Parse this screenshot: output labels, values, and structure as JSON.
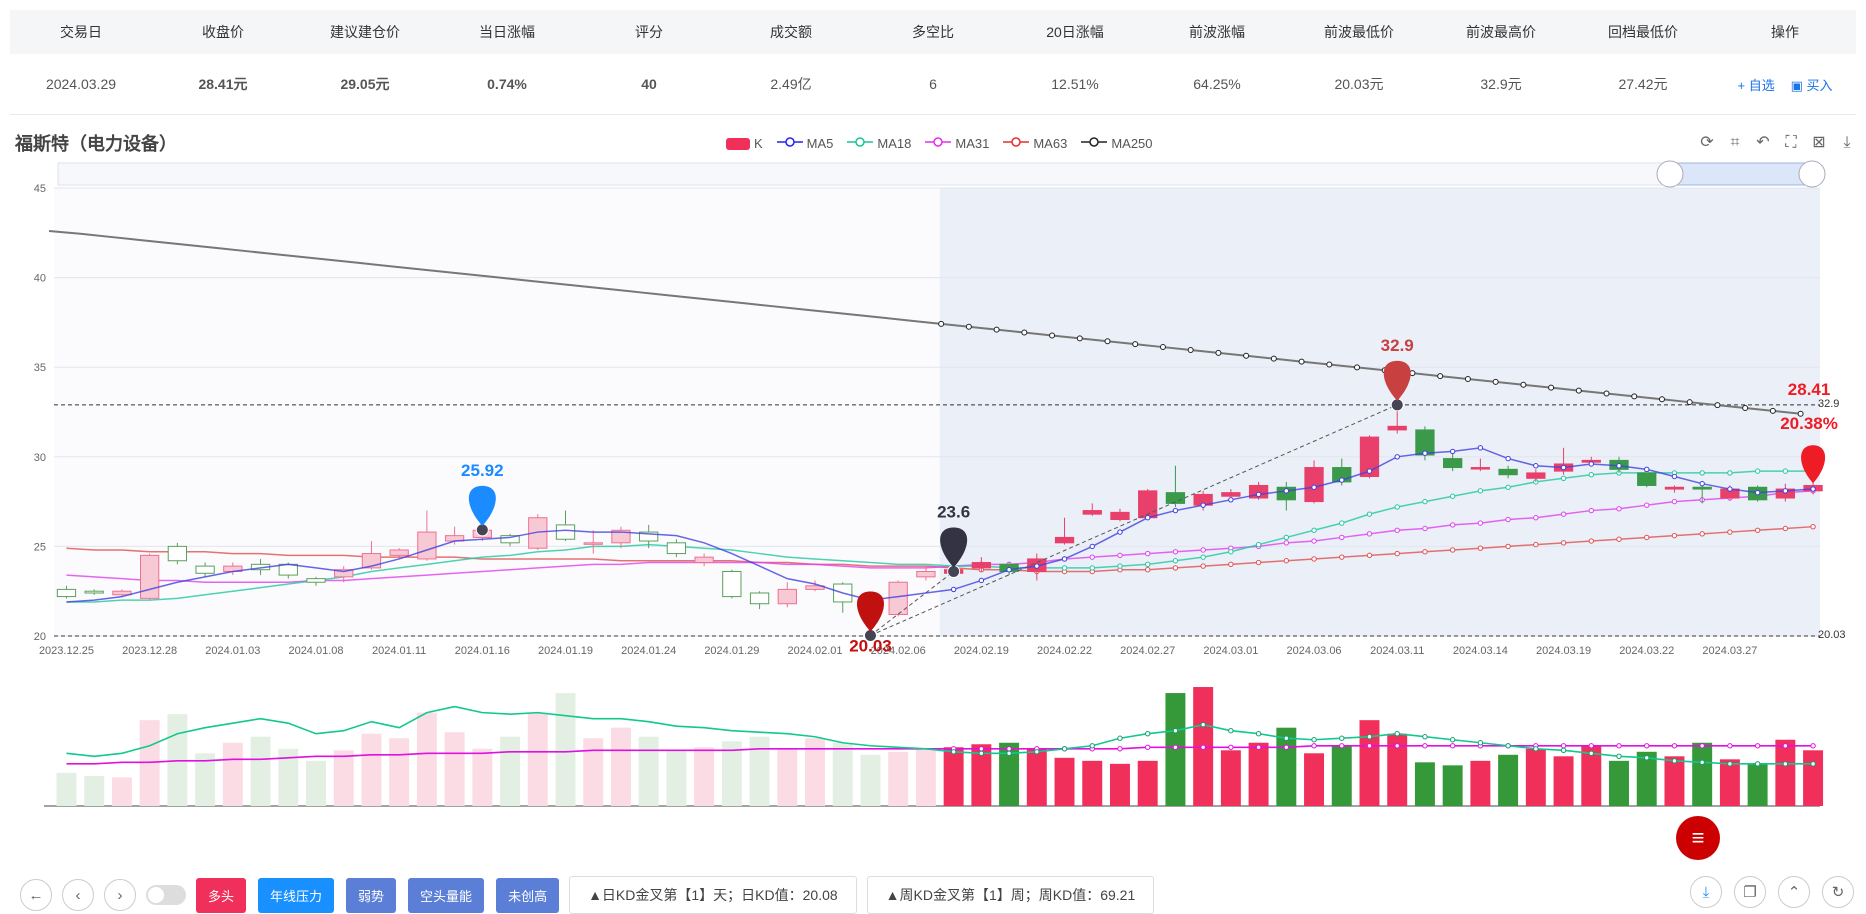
{
  "table": {
    "headers": [
      "交易日",
      "收盘价",
      "建议建仓价",
      "当日涨幅",
      "评分",
      "成交额",
      "多空比",
      "20日涨幅",
      "前波涨幅",
      "前波最低价",
      "前波最高价",
      "回档最低价",
      "操作"
    ],
    "row": [
      "2024.03.29",
      "28.41元",
      "29.05元",
      "0.74%",
      "40",
      "2.49亿",
      "6",
      "12.51%",
      "64.25%",
      "20.03元",
      "32.9元",
      "27.42元"
    ],
    "actions": [
      "+ 自选",
      "买入"
    ]
  },
  "stock_title": "福斯特（电力设备）",
  "legend": [
    {
      "name": "K",
      "color": "#f0305a"
    },
    {
      "name": "MA5",
      "color": "#2222ee"
    },
    {
      "name": "MA18",
      "color": "#19c39a"
    },
    {
      "name": "MA31",
      "color": "#e030e8"
    },
    {
      "name": "MA63",
      "color": "#e03030"
    },
    {
      "name": "MA250",
      "color": "#222222"
    }
  ],
  "toolbar_icons": [
    "refresh-icon",
    "crop-icon",
    "undo-icon",
    "fullscreen-icon",
    "export-icon",
    "download-icon"
  ],
  "chart_data": {
    "type": "candlestick",
    "ylim": [
      20,
      45
    ],
    "yticks": [
      45,
      40,
      35,
      30,
      25,
      20
    ],
    "xticks": [
      "2023.12.25",
      "2023.12.28",
      "2024.01.03",
      "2024.01.08",
      "2024.01.11",
      "2024.01.16",
      "2024.01.19",
      "2024.01.24",
      "2024.01.29",
      "2024.02.01",
      "2024.02.06",
      "2024.02.19",
      "2024.02.22",
      "2024.02.27",
      "2024.03.01",
      "2024.03.06",
      "2024.03.11",
      "2024.03.14",
      "2024.03.19",
      "2024.03.22",
      "2024.03.27"
    ],
    "candles": [
      [
        22.6,
        22.2,
        22.8,
        22.1
      ],
      [
        22.5,
        22.4,
        22.6,
        22.3
      ],
      [
        22.3,
        22.5,
        22.6,
        22.2
      ],
      [
        22.1,
        24.5,
        24.6,
        22.0
      ],
      [
        25.0,
        24.2,
        25.2,
        24.0
      ],
      [
        23.9,
        23.5,
        24.1,
        23.3
      ],
      [
        23.6,
        23.9,
        24.1,
        23.4
      ],
      [
        24.0,
        23.7,
        24.3,
        23.4
      ],
      [
        24.0,
        23.4,
        24.1,
        23.2
      ],
      [
        23.2,
        23.0,
        23.3,
        22.8
      ],
      [
        23.3,
        23.7,
        23.9,
        23.0
      ],
      [
        23.8,
        24.6,
        25.3,
        23.7
      ],
      [
        24.5,
        24.8,
        24.9,
        24.3
      ],
      [
        24.3,
        25.8,
        27.0,
        24.2
      ],
      [
        25.3,
        25.6,
        26.1,
        25.1
      ],
      [
        25.5,
        25.9,
        26.3,
        25.3
      ],
      [
        25.6,
        25.2,
        25.7,
        25.0
      ],
      [
        24.9,
        26.6,
        26.8,
        24.8
      ],
      [
        26.2,
        25.4,
        27.0,
        25.3
      ],
      [
        25.2,
        25.2,
        25.9,
        24.6
      ],
      [
        25.2,
        25.9,
        26.1,
        24.9
      ],
      [
        25.8,
        25.3,
        26.2,
        24.9
      ],
      [
        25.2,
        24.6,
        25.4,
        24.4
      ],
      [
        24.1,
        24.4,
        24.6,
        23.9
      ],
      [
        23.6,
        22.2,
        23.7,
        22.1
      ],
      [
        22.4,
        21.8,
        22.5,
        21.5
      ],
      [
        21.8,
        22.6,
        23.0,
        21.6
      ],
      [
        22.6,
        22.8,
        23.1,
        22.5
      ],
      [
        22.9,
        21.9,
        23.0,
        21.3
      ],
      [
        21.3,
        21.1,
        21.4,
        20.03
      ],
      [
        21.2,
        23.0,
        23.1,
        21.1
      ],
      [
        23.3,
        23.6,
        23.9,
        23.1
      ],
      [
        23.5,
        23.7,
        23.8,
        23.4
      ],
      [
        23.8,
        24.1,
        24.4,
        23.6
      ],
      [
        24.0,
        23.6,
        24.1,
        23.4
      ],
      [
        23.6,
        24.3,
        24.6,
        23.1
      ],
      [
        25.2,
        25.5,
        26.6,
        25.1
      ],
      [
        26.8,
        27.0,
        27.4,
        26.7
      ],
      [
        26.5,
        26.9,
        27.1,
        26.4
      ],
      [
        26.6,
        28.1,
        28.2,
        26.5
      ],
      [
        28.0,
        27.4,
        29.5,
        27.2
      ],
      [
        27.3,
        27.9,
        28.1,
        27.0
      ],
      [
        27.8,
        28.0,
        28.2,
        27.6
      ],
      [
        27.7,
        28.4,
        28.6,
        27.6
      ],
      [
        28.3,
        27.6,
        28.6,
        27.0
      ],
      [
        27.5,
        29.4,
        29.8,
        27.4
      ],
      [
        29.4,
        28.6,
        29.9,
        28.4
      ],
      [
        28.9,
        31.1,
        31.2,
        28.8
      ],
      [
        31.5,
        31.7,
        32.9,
        31.3
      ],
      [
        31.5,
        30.1,
        31.7,
        29.8
      ],
      [
        29.9,
        29.4,
        30.2,
        29.2
      ],
      [
        29.4,
        29.4,
        29.9,
        29.2
      ],
      [
        29.3,
        29.0,
        29.5,
        28.8
      ],
      [
        28.8,
        29.1,
        29.3,
        28.6
      ],
      [
        29.2,
        29.6,
        30.5,
        29.0
      ],
      [
        29.7,
        29.8,
        30.0,
        29.6
      ],
      [
        29.8,
        29.3,
        30.0,
        29.1
      ],
      [
        29.1,
        28.4,
        29.3,
        28.3
      ],
      [
        28.2,
        28.3,
        28.4,
        28.0
      ],
      [
        28.3,
        28.2,
        28.5,
        27.4
      ],
      [
        27.7,
        28.2,
        28.4,
        27.6
      ],
      [
        28.3,
        27.6,
        28.4,
        27.5
      ],
      [
        27.7,
        28.2,
        28.5,
        27.5
      ],
      [
        28.1,
        28.4,
        28.6,
        27.9
      ]
    ],
    "ma5": [
      21.9,
      22.0,
      22.2,
      22.6,
      23.0,
      23.3,
      23.6,
      23.8,
      24.0,
      23.8,
      23.6,
      23.9,
      24.3,
      24.8,
      25.3,
      25.4,
      25.5,
      25.8,
      25.9,
      25.8,
      25.8,
      25.7,
      25.6,
      25.2,
      24.6,
      23.9,
      23.2,
      22.9,
      22.4,
      22.0,
      22.2,
      22.4,
      22.6,
      23.1,
      23.7,
      23.9,
      24.3,
      25.0,
      25.8,
      26.6,
      27.0,
      27.3,
      27.6,
      27.9,
      28.1,
      28.3,
      28.7,
      29.2,
      30.0,
      30.2,
      30.3,
      30.5,
      29.9,
      29.5,
      29.4,
      29.6,
      29.5,
      29.3,
      28.9,
      28.5,
      28.2,
      28.0,
      28.1,
      28.2
    ],
    "ma18": [
      21.9,
      21.9,
      22.0,
      22.0,
      22.1,
      22.3,
      22.5,
      22.7,
      22.9,
      23.1,
      23.3,
      23.6,
      23.8,
      24.0,
      24.2,
      24.4,
      24.5,
      24.7,
      24.8,
      25.0,
      25.0,
      25.1,
      25.0,
      24.9,
      24.8,
      24.6,
      24.4,
      24.3,
      24.2,
      24.1,
      24.0,
      24.0,
      23.9,
      23.9,
      23.8,
      23.8,
      23.8,
      23.8,
      23.9,
      24.0,
      24.2,
      24.4,
      24.7,
      25.1,
      25.5,
      25.9,
      26.3,
      26.8,
      27.2,
      27.5,
      27.8,
      28.1,
      28.3,
      28.6,
      28.8,
      29.0,
      29.1,
      29.1,
      29.1,
      29.1,
      29.1,
      29.2,
      29.2,
      29.2
    ],
    "ma31": [
      23.4,
      23.3,
      23.2,
      23.1,
      23.1,
      23.0,
      23.0,
      23.0,
      23.0,
      23.1,
      23.1,
      23.2,
      23.3,
      23.4,
      23.5,
      23.6,
      23.7,
      23.8,
      23.9,
      24.0,
      24.0,
      24.1,
      24.1,
      24.1,
      24.1,
      24.1,
      24.0,
      24.0,
      23.9,
      23.8,
      23.8,
      23.8,
      23.9,
      24.0,
      24.0,
      24.1,
      24.3,
      24.4,
      24.5,
      24.6,
      24.7,
      24.8,
      24.9,
      25.0,
      25.2,
      25.3,
      25.5,
      25.7,
      25.9,
      26.0,
      26.2,
      26.3,
      26.5,
      26.6,
      26.8,
      27.0,
      27.1,
      27.3,
      27.5,
      27.6,
      27.7,
      27.8,
      28.0,
      28.1
    ],
    "ma63": [
      24.9,
      24.8,
      24.8,
      24.7,
      24.7,
      24.7,
      24.6,
      24.6,
      24.5,
      24.5,
      24.5,
      24.4,
      24.4,
      24.4,
      24.4,
      24.3,
      24.3,
      24.3,
      24.3,
      24.3,
      24.2,
      24.2,
      24.2,
      24.2,
      24.2,
      24.1,
      24.1,
      24.0,
      24.0,
      23.9,
      23.9,
      23.9,
      23.8,
      23.7,
      23.7,
      23.6,
      23.6,
      23.6,
      23.7,
      23.7,
      23.8,
      23.9,
      24.0,
      24.1,
      24.2,
      24.3,
      24.4,
      24.5,
      24.6,
      24.7,
      24.8,
      24.9,
      25.0,
      25.1,
      25.2,
      25.3,
      25.4,
      25.5,
      25.6,
      25.7,
      25.8,
      25.9,
      26.0,
      26.1
    ],
    "ma250_start": 42.6,
    "ma250_end": 32.4,
    "volumes": [
      22,
      20,
      19,
      57,
      61,
      35,
      42,
      46,
      38,
      30,
      37,
      48,
      45,
      62,
      49,
      38,
      46,
      62,
      75,
      45,
      52,
      46,
      37,
      39,
      43,
      46,
      38,
      45,
      42,
      34,
      36,
      38,
      39,
      41,
      42,
      38,
      32,
      30,
      28,
      30,
      75,
      79,
      37,
      42,
      52,
      35,
      40,
      57,
      48,
      29,
      27,
      30,
      34,
      38,
      33,
      40,
      30,
      36,
      33,
      42,
      31,
      28,
      44,
      37
    ],
    "vol_ma18": [
      35,
      33,
      35,
      40,
      48,
      52,
      55,
      58,
      55,
      48,
      50,
      56,
      52,
      62,
      66,
      62,
      61,
      62,
      60,
      58,
      58,
      56,
      53,
      52,
      50,
      49,
      48,
      46,
      42,
      40,
      39,
      38,
      36,
      35,
      35,
      36,
      38,
      40,
      45,
      48,
      50,
      54,
      50,
      48,
      45,
      44,
      45,
      46,
      48,
      46,
      44,
      42,
      40,
      38,
      37,
      35,
      33,
      32,
      30,
      29,
      28,
      28,
      28,
      28
    ],
    "vol_ma_pink": [
      28,
      28,
      29,
      29,
      30,
      30,
      31,
      31,
      32,
      33,
      33,
      34,
      34,
      35,
      35,
      35,
      36,
      36,
      36,
      37,
      37,
      37,
      37,
      37,
      37,
      38,
      38,
      38,
      38,
      38,
      38,
      38,
      38,
      38,
      38,
      38,
      38,
      38,
      38,
      39,
      39,
      39,
      39,
      39,
      39,
      40,
      40,
      40,
      40,
      40,
      40,
      40,
      40,
      40,
      40,
      40,
      40,
      40,
      40,
      40,
      40,
      40,
      40,
      40
    ]
  },
  "markers": {
    "high_left": "25.92",
    "low": "20.03",
    "mid": "23.6",
    "high": "32.9",
    "last_price": "28.41",
    "last_pct": "20.38%",
    "right_label_high": "32.9",
    "right_label_low": "20.03"
  },
  "bottom": {
    "tags": [
      {
        "label": "多头",
        "color": "#f0305a"
      },
      {
        "label": "年线压力",
        "color": "#1890ff"
      },
      {
        "label": "弱势",
        "color": "#5b7fd6"
      },
      {
        "label": "空头量能",
        "color": "#5b7fd6"
      },
      {
        "label": "未创高",
        "color": "#5b7fd6"
      }
    ],
    "kd_day": "▲日KD金叉第【1】天；日KD值：20.08",
    "kd_week": "▲周KD金叉第【1】周；周KD值：69.21"
  }
}
